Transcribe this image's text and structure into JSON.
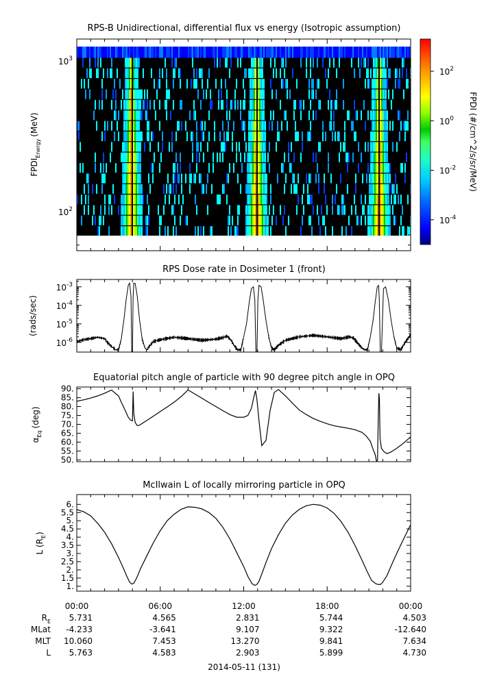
{
  "chart_data": [
    {
      "type": "heatmap",
      "title": "RPS-B  Unidirectional, differential flux vs energy (Isotropic assumption)",
      "ylabel_main": "FPDI",
      "ylabel_sub": "Energy",
      "ylabel_unit": "(MeV)",
      "yscale": "log",
      "ylim": [
        55,
        1400
      ],
      "yticks": [
        {
          "value": 100,
          "label": "10",
          "exp": "2"
        },
        {
          "value": 1000,
          "label": "10",
          "exp": "3"
        }
      ],
      "colorbar": {
        "label": "FPDI (#/cm^2/s/sr/MeV)",
        "scale": "log",
        "range": [
          1e-05,
          2000
        ],
        "ticks": [
          {
            "value": 0.0001,
            "label": "10",
            "exp": "-4"
          },
          {
            "value": 0.01,
            "label": "10",
            "exp": "-2"
          },
          {
            "value": 1,
            "label": "10",
            "exp": "0"
          },
          {
            "value": 100,
            "label": "10",
            "exp": "2"
          }
        ],
        "colors": [
          "#00007f",
          "#0000ff",
          "#0080ff",
          "#00ffff",
          "#40ff80",
          "#00c800",
          "#a0ff00",
          "#ffff00",
          "#ffa000",
          "#ff0000"
        ]
      },
      "x_hours": [
        0,
        24
      ],
      "perigee_hours": [
        3.9,
        12.9,
        21.7
      ],
      "top_channel_energy_mev": 1300,
      "background": "#000000"
    },
    {
      "type": "line",
      "title": "RPS  Dose rate in Dosimeter 1 (front)",
      "ylabel": "(rads/sec)",
      "yscale": "log",
      "ylim": [
        3e-07,
        0.0025
      ],
      "yticks": [
        {
          "value": 1e-06,
          "label": "10",
          "exp": "-6"
        },
        {
          "value": 1e-05,
          "label": "10",
          "exp": "-5"
        },
        {
          "value": 0.0001,
          "label": "10",
          "exp": "-4"
        },
        {
          "value": 0.001,
          "label": "10",
          "exp": "-3"
        }
      ],
      "x_hours": [
        0,
        0.5,
        1,
        1.5,
        2,
        2.2,
        2.5,
        2.8,
        3.0,
        3.2,
        3.4,
        3.55,
        3.7,
        3.8,
        3.9,
        3.95,
        4.0,
        4.05,
        4.1,
        4.2,
        4.35,
        4.5,
        4.7,
        4.9,
        5.05,
        5.2,
        5.5,
        6,
        7,
        8,
        9,
        10,
        10.5,
        10.8,
        11.1,
        11.3,
        11.55,
        11.8,
        12.0,
        12.2,
        12.4,
        12.55,
        12.7,
        12.8,
        12.88,
        12.95,
        13.02,
        13.1,
        13.25,
        13.4,
        13.6,
        13.8,
        14.0,
        14.2,
        14.5,
        15,
        16,
        17,
        18,
        19,
        19.6,
        19.9,
        20.2,
        20.5,
        20.7,
        20.9,
        21.1,
        21.3,
        21.45,
        21.6,
        21.7,
        21.75,
        21.82,
        21.9,
        22.05,
        22.2,
        22.4,
        22.6,
        22.8,
        23.0,
        23.3,
        23.6,
        24
      ],
      "values": [
        1.1e-06,
        1.4e-06,
        1.6e-06,
        1.9e-06,
        1.6e-06,
        1e-06,
        6e-07,
        4e-07,
        4e-07,
        1.5e-06,
        2e-05,
        0.0002,
        0.0012,
        0.0016,
        0.0003,
        2.5e-07,
        2.5e-07,
        0.0003,
        0.0016,
        0.0015,
        0.0003,
        2e-05,
        1.5e-06,
        5e-07,
        4e-07,
        6e-07,
        1.1e-06,
        1.4e-06,
        1.9e-06,
        1.6e-06,
        1.3e-06,
        1.5e-06,
        1.8e-06,
        2.2e-06,
        1.3e-06,
        7e-07,
        4e-07,
        4e-07,
        2e-06,
        1e-05,
        0.00015,
        0.0008,
        0.001,
        0.0002,
        2.5e-07,
        2.5e-07,
        0.0002,
        0.0012,
        0.001,
        0.0002,
        1.5e-05,
        2e-06,
        5e-07,
        4e-07,
        7e-07,
        1.3e-06,
        2e-06,
        2.4e-06,
        2e-06,
        1.6e-06,
        2e-06,
        1.7e-06,
        9e-07,
        5e-07,
        4e-07,
        4e-07,
        2e-06,
        1.5e-05,
        0.00015,
        0.001,
        0.0012,
        0.0002,
        2.5e-07,
        2.5e-07,
        0.0008,
        0.001,
        0.0002,
        1.5e-05,
        2e-06,
        5e-07,
        4e-07,
        1e-06,
        2.5e-06
      ]
    },
    {
      "type": "line",
      "title": "Equatorial pitch angle of particle with 90 degree pitch angle in OPQ",
      "ylabel_main": "α",
      "ylabel_sub": "Eq",
      "ylabel_unit": "(deg)",
      "ylim": [
        49,
        91
      ],
      "yticks": [
        50,
        55,
        60,
        65,
        70,
        75,
        80,
        85,
        90
      ],
      "x_hours": [
        0,
        0.5,
        1,
        1.5,
        2,
        2.5,
        3,
        3.2,
        3.5,
        3.7,
        3.85,
        4.0,
        4.05,
        4.1,
        4.2,
        4.35,
        4.5,
        5,
        5.5,
        6,
        6.5,
        7,
        7.5,
        8,
        8.5,
        9,
        9.5,
        10,
        10.5,
        11,
        11.5,
        12,
        12.3,
        12.55,
        12.75,
        12.85,
        12.95,
        13.1,
        13.3,
        13.6,
        13.9,
        14.2,
        14.5,
        15,
        15.5,
        16,
        16.5,
        17,
        17.5,
        18,
        18.5,
        19,
        19.5,
        20,
        20.5,
        20.8,
        21.1,
        21.3,
        21.45,
        21.55,
        21.62,
        21.68,
        21.72,
        21.76,
        21.8,
        21.9,
        22.1,
        22.3,
        22.6,
        23,
        23.5,
        24
      ],
      "values": [
        83,
        83.8,
        84.8,
        86,
        87.5,
        89.3,
        86,
        82.5,
        77.5,
        74,
        72.5,
        72,
        88.5,
        76,
        71,
        69.3,
        69.5,
        72,
        74.6,
        77.2,
        79.8,
        82.5,
        85.6,
        89.4,
        87,
        84.7,
        82.3,
        80,
        77.7,
        75.5,
        74,
        74,
        75,
        79,
        86,
        89,
        84,
        72,
        58,
        61,
        78,
        88,
        89.6,
        86,
        82,
        78,
        75.5,
        73.3,
        71.7,
        70.3,
        69.2,
        68.5,
        67.8,
        67,
        65.5,
        63.5,
        60.5,
        56,
        53,
        49,
        50,
        75,
        87.5,
        84,
        62,
        56.5,
        54.5,
        53.5,
        54.5,
        56.5,
        59.5,
        63
      ]
    },
    {
      "type": "line",
      "title": "McIlwain L of locally mirroring particle in OPQ",
      "ylabel_main": "L (R",
      "ylabel_sub": "E",
      "ylabel_unit": ")",
      "ylim": [
        0.7,
        6.6
      ],
      "yticks": [
        1,
        1.5,
        2,
        2.5,
        3,
        3.5,
        4,
        4.5,
        5,
        5.5,
        6
      ],
      "yticklabels": [
        "1.",
        "1.5",
        "2.",
        "2.5",
        "3.",
        "3.5",
        "4.",
        "4.5",
        "5.",
        "5.5",
        "6."
      ],
      "x_hours": [
        0,
        0.5,
        1,
        1.5,
        2,
        2.5,
        3,
        3.3,
        3.6,
        3.8,
        3.95,
        4.1,
        4.3,
        4.6,
        5,
        5.5,
        6,
        6.5,
        7,
        7.5,
        8,
        8.5,
        9,
        9.5,
        10,
        10.5,
        11,
        11.5,
        12,
        12.3,
        12.6,
        12.8,
        12.95,
        13.1,
        13.3,
        13.6,
        14,
        14.5,
        15,
        15.5,
        16,
        16.5,
        17,
        17.5,
        18,
        18.5,
        19,
        19.5,
        20,
        20.5,
        20.9,
        21.2,
        21.5,
        21.7,
        21.85,
        22,
        22.3,
        22.6,
        23,
        23.5,
        24
      ],
      "values": [
        5.68,
        5.55,
        5.3,
        4.85,
        4.3,
        3.6,
        2.75,
        2.2,
        1.6,
        1.25,
        1.13,
        1.18,
        1.5,
        2.1,
        2.8,
        3.65,
        4.4,
        5.0,
        5.4,
        5.7,
        5.85,
        5.82,
        5.72,
        5.5,
        5.15,
        4.6,
        3.9,
        3.05,
        2.2,
        1.6,
        1.15,
        1.05,
        1.12,
        1.3,
        1.75,
        2.45,
        3.3,
        4.15,
        4.85,
        5.35,
        5.7,
        5.92,
        6.0,
        5.95,
        5.78,
        5.45,
        4.95,
        4.3,
        3.5,
        2.6,
        1.85,
        1.35,
        1.15,
        1.1,
        1.12,
        1.25,
        1.65,
        2.25,
        3.0,
        3.9,
        4.75
      ]
    }
  ],
  "x_axis": {
    "tick_labels": [
      "00:00",
      "06:00",
      "12:00",
      "18:00",
      "00:00"
    ],
    "tick_hours": [
      0,
      6,
      12,
      18,
      24
    ],
    "date_label": "2014-05-11 (131)"
  },
  "ephemeris": {
    "rows": [
      {
        "name": "R",
        "sub": "E",
        "values": [
          "5.731",
          "4.565",
          "2.831",
          "5.744",
          "4.503"
        ]
      },
      {
        "name": "MLat",
        "sub": "",
        "values": [
          "-4.233",
          "-3.641",
          "9.107",
          "9.322",
          "-12.640"
        ]
      },
      {
        "name": "MLT",
        "sub": "",
        "values": [
          "10.060",
          "7.453",
          "13.270",
          "9.841",
          "7.634"
        ]
      },
      {
        "name": "L",
        "sub": "",
        "values": [
          "5.763",
          "4.583",
          "2.903",
          "5.899",
          "4.730"
        ]
      }
    ]
  }
}
